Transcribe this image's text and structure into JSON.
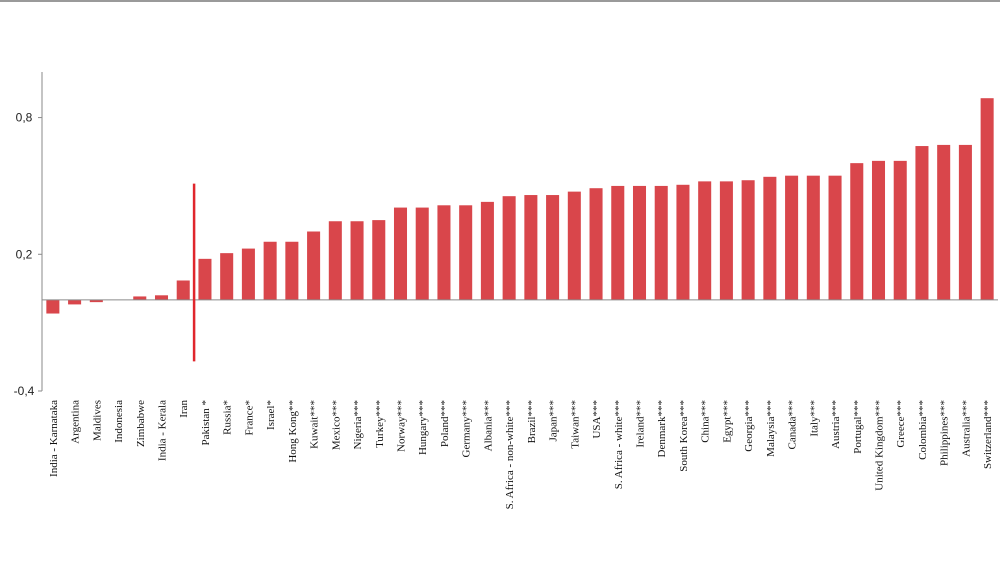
{
  "chart_data": {
    "type": "bar",
    "title": "",
    "xlabel": "",
    "ylabel": "",
    "ylim": [
      -0.4,
      1.0
    ],
    "yticks": [
      {
        "value": 0.8,
        "label": "0,8"
      },
      {
        "value": 0.2,
        "label": "0,2"
      },
      {
        "value": -0.4,
        "label": "-0,4"
      }
    ],
    "grid": false,
    "bar_color": "#d9464b",
    "marker_color": "#e0262c",
    "marker_category": "Iran",
    "marker_range": [
      -0.27,
      0.51
    ],
    "categories": [
      "India - Karnataka",
      "Argentina",
      "Maldives",
      "Indonesia",
      "Zimbabwe",
      "India - Kerala",
      "Iran",
      "Pakistan *",
      "Russia*",
      "France*",
      "Israel*",
      "Hong Kong**",
      "Kuwait***",
      "Mexico***",
      "Nigeria***",
      "Turkey***",
      "Norway***",
      "Hungary***",
      "Poland***",
      "Germany***",
      "Albania***",
      "S. Africa - non-white***",
      "Brazil***",
      "Japan***",
      "Taiwan***",
      "USA***",
      "S. Africa - white***",
      "Ireland***",
      "Denmark***",
      "South Korea***",
      "China***",
      "Egypt***",
      "Georgia***",
      "Malaysia***",
      "Canada***",
      "Italy***",
      "Austria***",
      "Portugal***",
      "United Kingdom***",
      "Greece***",
      "Colombia***",
      "Philippines***",
      "Australia***",
      "Switzerland***"
    ],
    "values": [
      -0.06,
      -0.02,
      -0.01,
      0.0,
      0.015,
      0.02,
      0.085,
      0.18,
      0.205,
      0.225,
      0.255,
      0.255,
      0.3,
      0.345,
      0.345,
      0.35,
      0.405,
      0.405,
      0.415,
      0.415,
      0.43,
      0.455,
      0.46,
      0.46,
      0.475,
      0.49,
      0.5,
      0.5,
      0.5,
      0.505,
      0.52,
      0.52,
      0.525,
      0.54,
      0.545,
      0.545,
      0.545,
      0.6,
      0.61,
      0.61,
      0.675,
      0.68,
      0.68,
      0.885
    ]
  }
}
